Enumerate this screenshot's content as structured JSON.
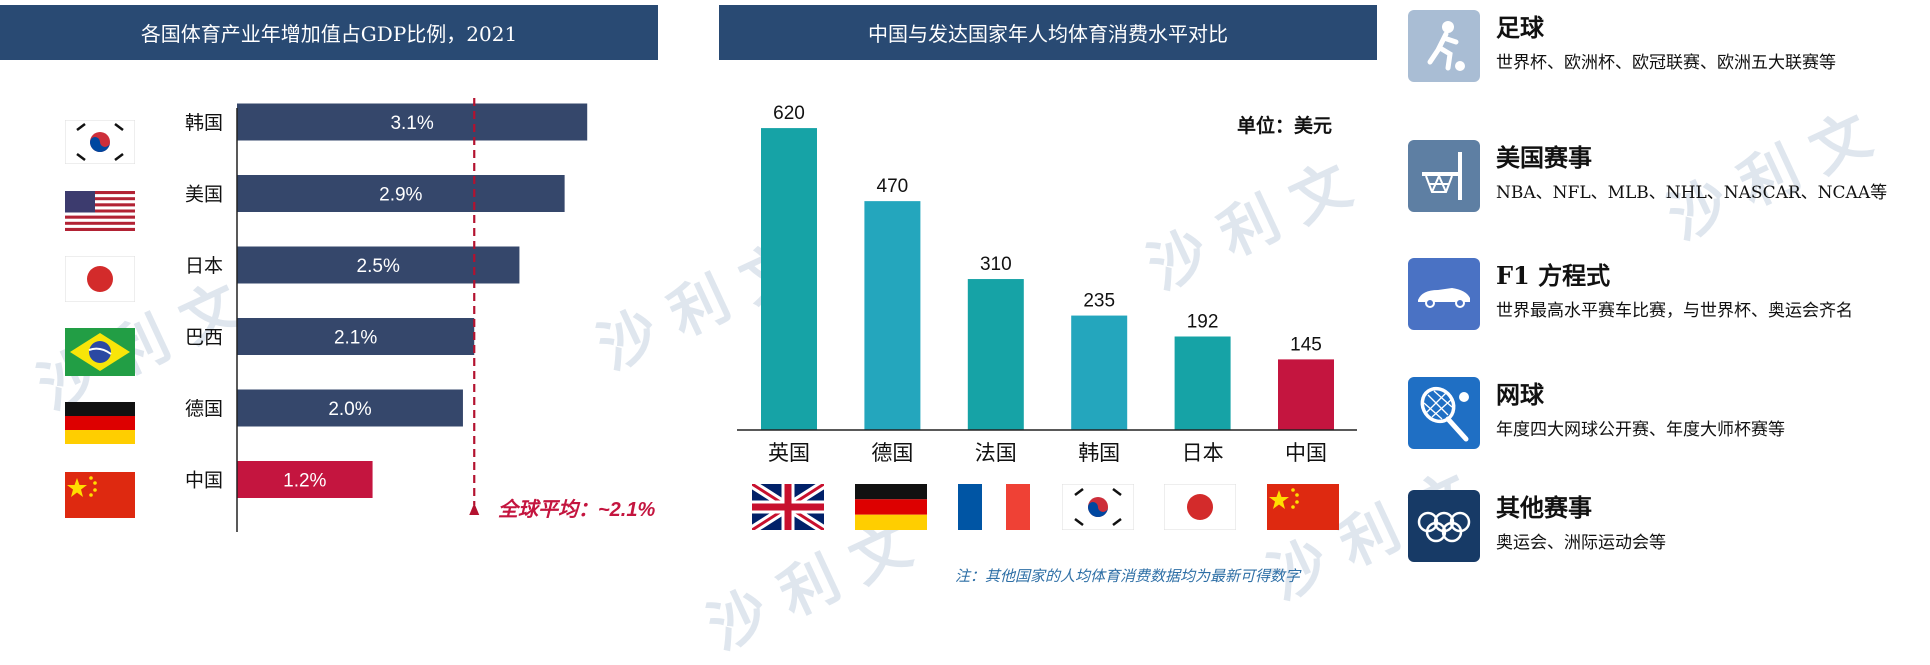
{
  "left_panel": {
    "title": "各国体育产业年增加值占GDP比例，2021",
    "average_label": "全球平均：~2.1%",
    "average_value": 2.1
  },
  "right_panel": {
    "title": "中国与发达国家年人均体育消费水平对比",
    "unit": "单位：美元",
    "note": "注：其他国家的人均体育消费数据均为最新可得数字"
  },
  "chart_data": [
    {
      "type": "bar",
      "orientation": "horizontal",
      "categories": [
        "韩国",
        "美国",
        "日本",
        "巴西",
        "德国",
        "中国"
      ],
      "values": [
        3.1,
        2.9,
        2.5,
        2.1,
        2.0,
        1.2
      ],
      "value_labels": [
        "3.1%",
        "2.9%",
        "2.5%",
        "2.1%",
        "2.0%",
        "1.2%"
      ],
      "xlim": [
        0,
        3.7
      ],
      "highlight": "中国",
      "reference_line": 2.1,
      "colors": {
        "bar": "#35476b",
        "highlight": "#c4153f",
        "reference": "#b3122f"
      },
      "flags": [
        "korea",
        "usa",
        "japan",
        "brazil",
        "germany",
        "china"
      ]
    },
    {
      "type": "bar",
      "orientation": "vertical",
      "categories": [
        "英国",
        "德国",
        "法国",
        "韩国",
        "日本",
        "中国"
      ],
      "values": [
        620,
        470,
        310,
        235,
        192,
        145
      ],
      "ylim": [
        0,
        690
      ],
      "highlight": "中国",
      "colors": {
        "bar": "#16a3a6",
        "bar_alt": "#24a6bd",
        "highlight": "#c4153f"
      },
      "flags": [
        "uk",
        "germany",
        "france",
        "korea",
        "japan",
        "china"
      ]
    }
  ],
  "sports": [
    {
      "name": "足球",
      "desc": "世界杯、欧洲杯、欧冠联赛、欧洲五大联赛等",
      "icon": "soccer-player-icon",
      "color": "#a9bdd4"
    },
    {
      "name": "美国赛事",
      "desc": "NBA、NFL、MLB、NHL、NASCAR、NCAA等",
      "icon": "basketball-hoop-icon",
      "color": "#5e7fa3"
    },
    {
      "name": "F1 方程式",
      "desc": "世界最高水平赛车比赛，与世界杯、奥运会齐名",
      "icon": "race-car-icon",
      "color": "#4a72c4"
    },
    {
      "name": "网球",
      "desc": "年度四大网球公开赛、年度大师杯赛等",
      "icon": "tennis-racket-icon",
      "color": "#1f6fc4"
    },
    {
      "name": "其他赛事",
      "desc": "奥运会、洲际运动会等",
      "icon": "olympic-rings-icon",
      "color": "#173a66"
    }
  ]
}
